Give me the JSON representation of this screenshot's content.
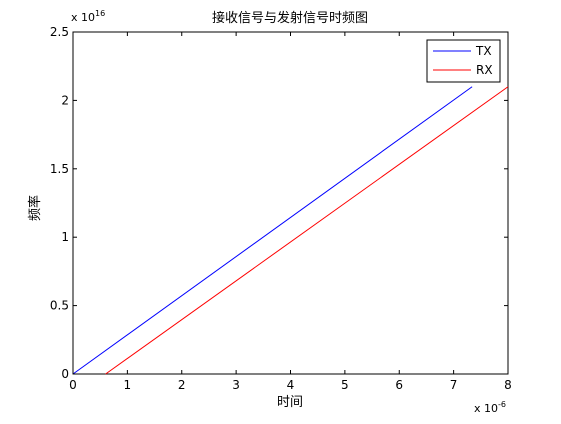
{
  "chart_data": {
    "type": "line",
    "title": "接收信号与发射信号时频图",
    "xlabel": "时间",
    "ylabel": "频率",
    "x_multiplier": "x 10",
    "x_exponent": "-6",
    "y_multiplier": "x 10",
    "y_exponent": "16",
    "xlim": [
      0,
      8
    ],
    "ylim": [
      0,
      2.5
    ],
    "xticks": [
      "0",
      "1",
      "2",
      "3",
      "4",
      "5",
      "6",
      "7",
      "8"
    ],
    "yticks": [
      "0",
      "0.5",
      "1",
      "1.5",
      "2",
      "2.5"
    ],
    "grid": false,
    "legend_position": "top-right",
    "series": [
      {
        "name": "TX",
        "color": "#0000ff",
        "x": [
          0,
          7.34
        ],
        "y": [
          0,
          2.1
        ]
      },
      {
        "name": "RX",
        "color": "#ff0000",
        "x": [
          0.6,
          8.0
        ],
        "y": [
          0,
          2.1
        ]
      }
    ]
  }
}
